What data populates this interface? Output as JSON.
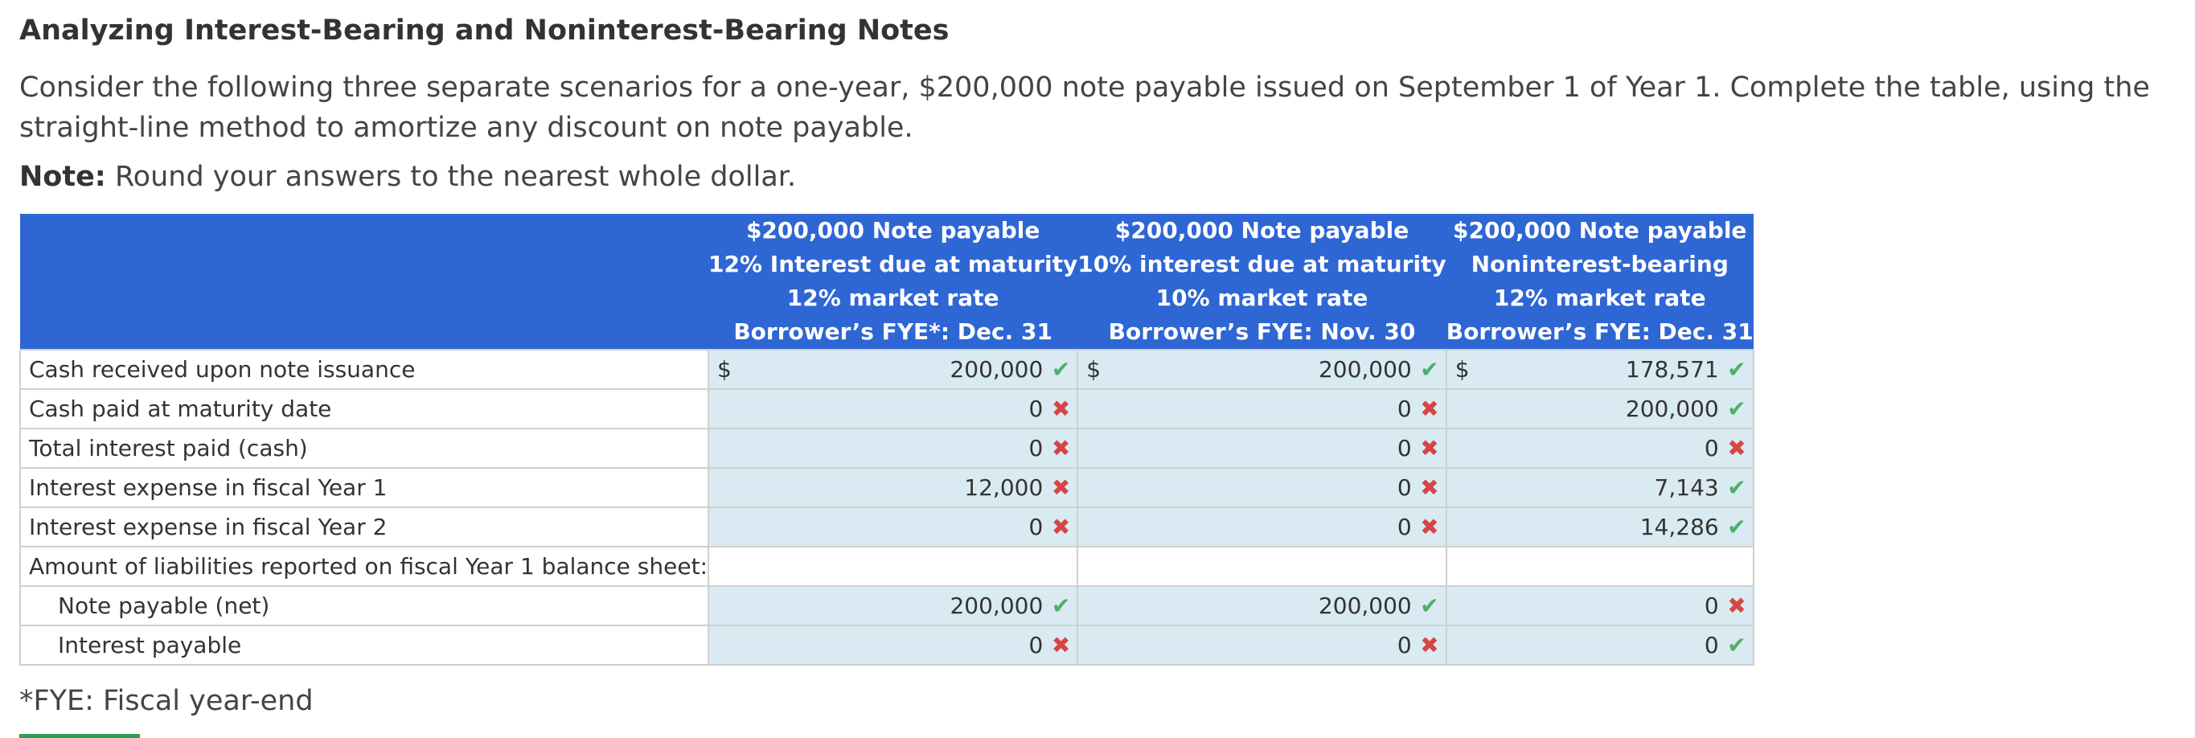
{
  "title": "Analyzing Interest-Bearing and Noninterest-Bearing Notes",
  "instructions": "Consider the following three separate scenarios for a one-year, $200,000 note payable issued on September 1 of Year 1. Complete the table, using the straight-line method to amortize any discount on note payable.",
  "note": {
    "label": "Note:",
    "text": " Round your answers to the nearest whole dollar."
  },
  "footnote": "*FYE: Fiscal year-end",
  "table": {
    "columns": [
      {
        "lines": [
          "$200,000 Note payable",
          "12% Interest due at maturity",
          "12% market rate",
          "Borrower’s FYE*: Dec. 31"
        ]
      },
      {
        "lines": [
          "$200,000 Note payable",
          "10% interest due at maturity",
          "10% market rate",
          "Borrower’s FYE: Nov. 30"
        ]
      },
      {
        "lines": [
          "$200,000 Note payable",
          "Noninterest-bearing",
          "12% market rate",
          "Borrower’s FYE: Dec. 31"
        ]
      }
    ],
    "currency_symbol": "$",
    "rows": [
      {
        "label": "Cash received upon note issuance",
        "cells": [
          {
            "value": "200,000",
            "status": "correct"
          },
          {
            "value": "200,000",
            "status": "correct"
          },
          {
            "value": "178,571",
            "status": "correct"
          }
        ]
      },
      {
        "label": "Cash paid at maturity date",
        "cells": [
          {
            "value": "0",
            "status": "incorrect"
          },
          {
            "value": "0",
            "status": "incorrect"
          },
          {
            "value": "200,000",
            "status": "correct"
          }
        ]
      },
      {
        "label": "Total interest paid (cash)",
        "cells": [
          {
            "value": "0",
            "status": "incorrect"
          },
          {
            "value": "0",
            "status": "incorrect"
          },
          {
            "value": "0",
            "status": "incorrect"
          }
        ]
      },
      {
        "label": "Interest expense in fiscal Year 1",
        "cells": [
          {
            "value": "12,000",
            "status": "incorrect"
          },
          {
            "value": "0",
            "status": "incorrect"
          },
          {
            "value": "7,143",
            "status": "correct"
          }
        ]
      },
      {
        "label": "Interest expense in fiscal Year 2",
        "cells": [
          {
            "value": "0",
            "status": "incorrect"
          },
          {
            "value": "0",
            "status": "incorrect"
          },
          {
            "value": "14,286",
            "status": "correct"
          }
        ]
      },
      {
        "label": "Amount of liabilities reported on fiscal Year 1 balance sheet:",
        "section": true
      },
      {
        "label": "Note payable (net)",
        "indent": true,
        "cells": [
          {
            "value": "200,000",
            "status": "correct"
          },
          {
            "value": "200,000",
            "status": "correct"
          },
          {
            "value": "0",
            "status": "incorrect"
          }
        ]
      },
      {
        "label": "Interest payable",
        "indent": true,
        "cells": [
          {
            "value": "0",
            "status": "incorrect"
          },
          {
            "value": "0",
            "status": "incorrect"
          },
          {
            "value": "0",
            "status": "correct"
          }
        ]
      }
    ]
  },
  "icons": {
    "correct": "check-icon",
    "incorrect": "cross-icon"
  },
  "colors": {
    "header_bg": "#2e66d4",
    "input_bg": "#d9eaf2",
    "correct": "#4caf6a",
    "incorrect": "#d64545"
  }
}
